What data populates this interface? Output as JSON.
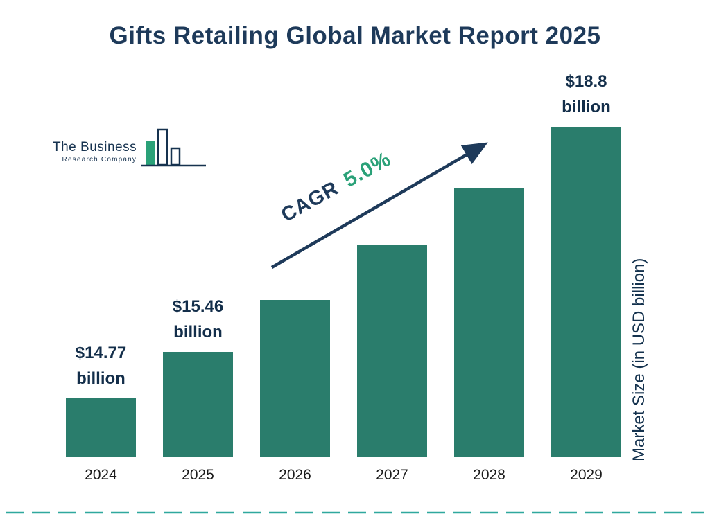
{
  "title": "Gifts Retailing Global Market Report 2025",
  "logo": {
    "line1": "The Business",
    "line2": "Research Company"
  },
  "cagr": {
    "label": "CAGR",
    "value": "5.0%"
  },
  "y_axis_label": "Market Size (in USD billion)",
  "colors": {
    "bar": "#2a7d6c",
    "navy": "#1e3a5a",
    "accent_green": "#2aa178",
    "divider_teal": "#2fa89e"
  },
  "chart_data": {
    "type": "bar",
    "title": "Gifts Retailing Global Market Report 2025",
    "categories": [
      "2024",
      "2025",
      "2026",
      "2027",
      "2028",
      "2029"
    ],
    "values": [
      14.77,
      15.46,
      16.23,
      17.05,
      17.9,
      18.8
    ],
    "data_labels": [
      [
        "$14.77",
        "billion"
      ],
      [
        "$15.46",
        "billion"
      ],
      null,
      null,
      null,
      [
        "$18.8",
        "billion"
      ]
    ],
    "xlabel": "",
    "ylabel": "Market Size (in USD billion)",
    "ylim": [
      13.9,
      18.8
    ],
    "annotation": "CAGR 5.0%",
    "grid": false,
    "legend": false
  }
}
